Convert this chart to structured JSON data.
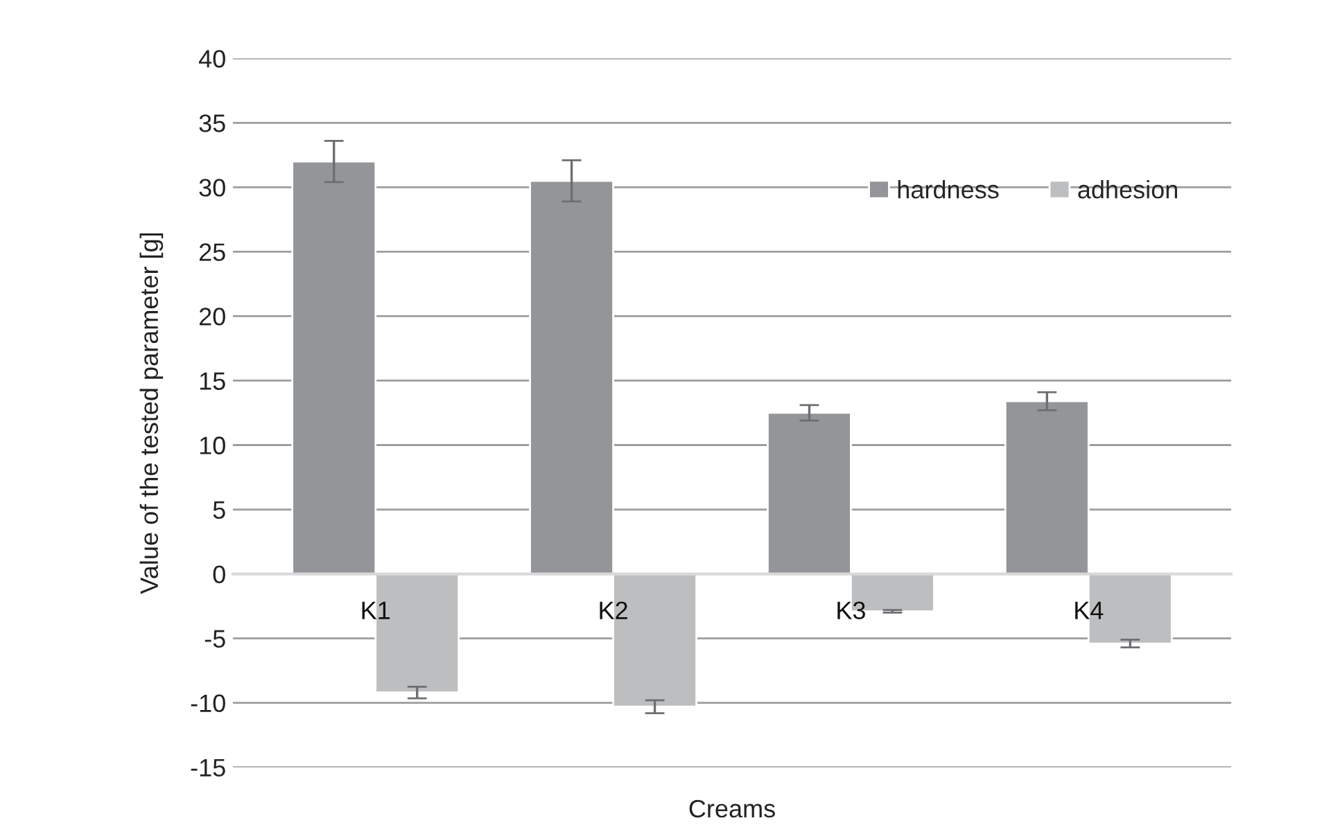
{
  "chart_data": {
    "type": "bar",
    "xlabel": "Creams",
    "ylabel": "Value of the tested parameter [g]",
    "categories": [
      "K1",
      "K2",
      "K3",
      "K4"
    ],
    "series": [
      {
        "name": "hardness",
        "color": "#939598",
        "values": [
          32,
          30.5,
          12.5,
          13.4
        ],
        "errors": [
          1.6,
          1.6,
          0.6,
          0.7
        ]
      },
      {
        "name": "adhesion",
        "color": "#bcbec0",
        "values": [
          -9.2,
          -10.3,
          -2.9,
          -5.4
        ],
        "errors": [
          0.45,
          0.5,
          0.1,
          0.3
        ]
      }
    ],
    "ylim": [
      -15,
      40
    ],
    "yticks": [
      -15,
      -10,
      -5,
      0,
      5,
      10,
      15,
      20,
      25,
      30,
      35,
      40
    ],
    "grid": "y",
    "legend": "top right"
  }
}
